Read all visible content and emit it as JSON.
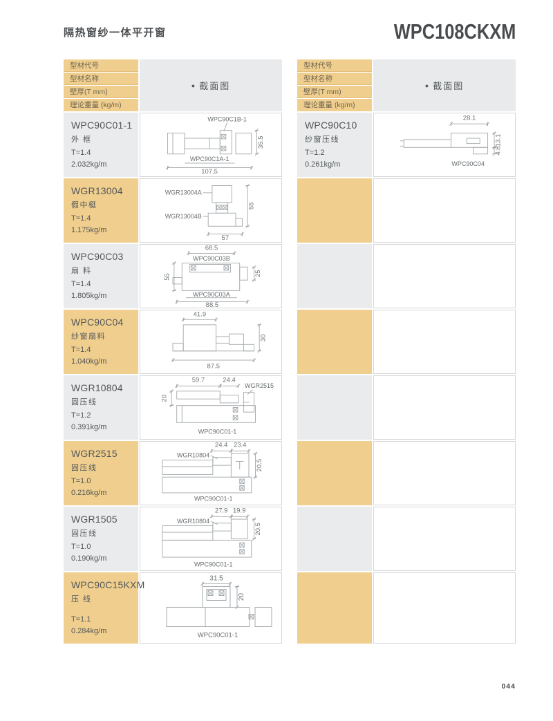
{
  "page": {
    "title": "隔热窗纱一体平开窗",
    "model_code": "WPC108CKXM",
    "page_number": "044"
  },
  "table_headers": {
    "rows": [
      "型材代号",
      "型材名称",
      "壁厚(T mm)",
      "理论重量 (kg/m)"
    ],
    "section_bullet": "●",
    "section_label": "截面图"
  },
  "colors": {
    "header_orange": "#f0cf8e",
    "row_gray": "#e9ebec",
    "section_header_gray": "#e8eaeb"
  },
  "left_table": {
    "rows": [
      {
        "code": "WPC90C01-1",
        "name": "外 框",
        "thickness": "T=1.4",
        "weight": "2.032kg/m",
        "diagram": {
          "top_label": "WPC90C1B-1",
          "bottom_label": "WPC90C1A-1",
          "width": "107.5",
          "height": "35.5"
        }
      },
      {
        "code": "WGR13004",
        "name": "假中梃",
        "thickness": "T=1.4",
        "weight": "1.175kg/m",
        "diagram": {
          "part_a": "WGR13004A",
          "part_b": "WGR13004B",
          "height": "55",
          "width": "57"
        }
      },
      {
        "code": "WPC90C03",
        "name": "扇 料",
        "thickness": "T=1.4",
        "weight": "1.805kg/m",
        "diagram": {
          "top_width": "68.5",
          "top_label": "WPC90C03B",
          "left_height": "55",
          "right_height": "25",
          "bottom_label": "WPC90C03A",
          "bottom_width": "88.5"
        }
      },
      {
        "code": "WPC90C04",
        "name": "纱窗扇料",
        "thickness": "T=1.4",
        "weight": "1.040kg/m",
        "diagram": {
          "top_width": "41.9",
          "right_height": "30",
          "bottom_width": "87.5"
        }
      },
      {
        "code": "WGR10804",
        "name": "固压线",
        "thickness": "T=1.2",
        "weight": "0.391kg/m",
        "diagram": {
          "dim1": "59.7",
          "dim2": "24.4",
          "ref_right": "WGR2515",
          "left_height": "20",
          "bottom_label": "WPC90C01-1"
        }
      },
      {
        "code": "WGR2515",
        "name": "固压线",
        "thickness": "T=1.0",
        "weight": "0.216kg/m",
        "diagram": {
          "dim1": "24.4",
          "dim2": "23.4",
          "ref_left": "WGR10804",
          "right_height": "20.5",
          "bottom_label": "WPC90C01-1"
        }
      },
      {
        "code": "WGR1505",
        "name": "固压线",
        "thickness": "T=1.0",
        "weight": "0.190kg/m",
        "diagram": {
          "dim1": "27.9",
          "dim2": "19.9",
          "ref_left": "WGR10804",
          "right_height": "20.5",
          "bottom_label": "WPC90C01-1"
        }
      },
      {
        "code": "WPC90C15KXM",
        "name": "压 线",
        "thickness": "T=1.1",
        "weight": "0.284kg/m",
        "diagram": {
          "top_width": "31.5",
          "right_height": "20",
          "bottom_label": "WPC90C01-1"
        }
      }
    ]
  },
  "right_table": {
    "rows": [
      {
        "code": "WPC90C10",
        "name": "纱窗压线",
        "thickness": "T=1.2",
        "weight": "0.261kg/m",
        "diagram": {
          "top_width": "28.1",
          "right_height1": "13.1",
          "right_height2": "4.8",
          "bottom_label": "WPC90C04"
        }
      }
    ],
    "empty_rows": 7
  }
}
